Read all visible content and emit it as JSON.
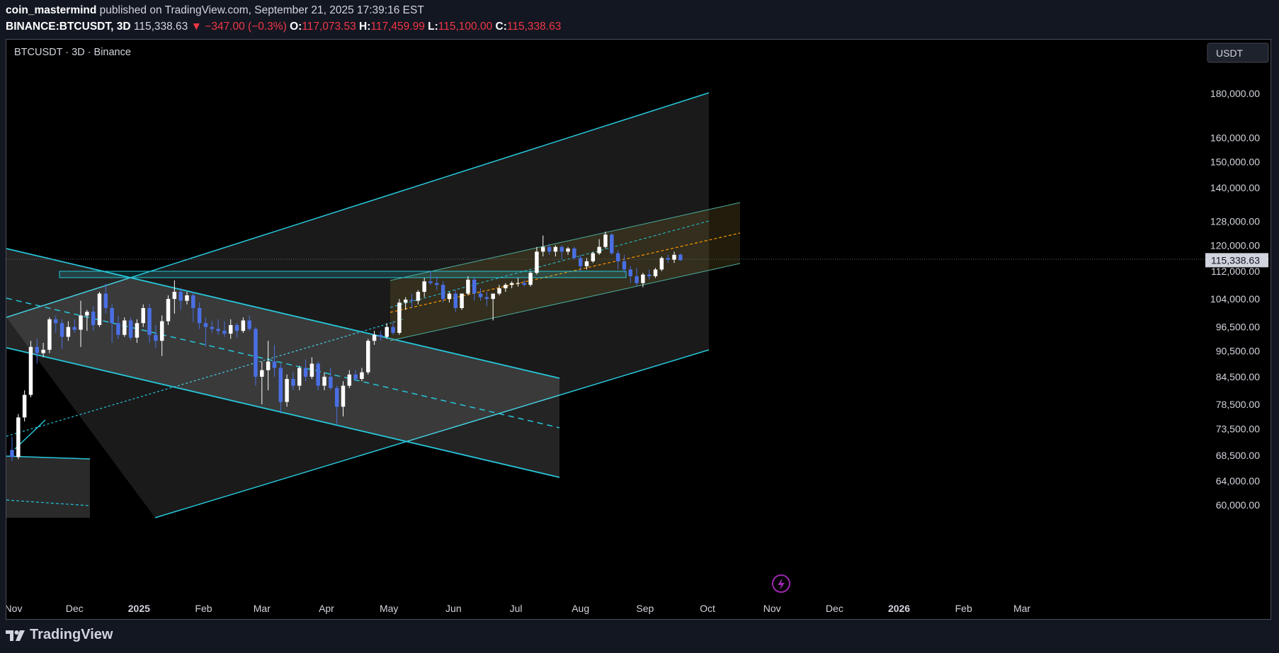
{
  "header": {
    "author": "coin_mastermind",
    "published_text": "published on TradingView.com, September 21, 2025 17:39:16 EST",
    "symbol": "BINANCE:BTCUSDT",
    "interval": "3D",
    "last": "115,338.63",
    "change": "▼ −347.00 (−0.3%)",
    "o_label": "O:",
    "o": "117,073.53",
    "h_label": "H:",
    "h": "117,459.99",
    "l_label": "L:",
    "l": "115,100.00",
    "c_label": "C:",
    "c": "115,338.63"
  },
  "chart": {
    "legend": "BTCUSDT · 3D · Binance",
    "currency_button": "USDT",
    "current_price_label": "115,338.63",
    "flash_icon": "lightning-icon",
    "colors": {
      "bg": "#000000",
      "up": "#ffffff",
      "down": "#4a6fe3",
      "channel": "#26c6da",
      "midline_orange": "#ff9800",
      "channel_fill": "#2a2a2a",
      "box_fill": "#3a3220"
    }
  },
  "footer": {
    "brand": "TradingView"
  },
  "chart_data": {
    "type": "candlestick",
    "title": "BTCUSDT · 3D · Binance",
    "y_axis": {
      "scale": "log",
      "unit": "USDT",
      "ticks": [
        "180,000.00",
        "160,000.00",
        "150,000.00",
        "140,000.00",
        "128,000.00",
        "120,000.00",
        "112,000.00",
        "104,000.00",
        "96,500.00",
        "90,500.00",
        "84,500.00",
        "78,500.00",
        "73,500.00",
        "68,500.00",
        "64,000.00",
        "60,000.00"
      ],
      "tick_values": [
        180000,
        160000,
        150000,
        140000,
        128000,
        120000,
        112000,
        104000,
        96500,
        90500,
        84500,
        78500,
        73500,
        68500,
        64000,
        60000
      ],
      "ylim": [
        58000,
        195000
      ]
    },
    "x_axis": {
      "labels": [
        "Nov",
        "Dec",
        "2025",
        "Feb",
        "Mar",
        "Apr",
        "May",
        "Jun",
        "Jul",
        "Aug",
        "Sep",
        "Oct",
        "Nov",
        "Dec",
        "2026",
        "Feb",
        "Mar"
      ],
      "dates": [
        "2024-11-01",
        "2024-12-01",
        "2025-01-01",
        "2025-02-01",
        "2025-03-01",
        "2025-04-01",
        "2025-05-01",
        "2025-06-01",
        "2025-07-01",
        "2025-08-01",
        "2025-09-01",
        "2025-10-01",
        "2025-11-01",
        "2025-12-01",
        "2026-01-01",
        "2026-02-01",
        "2026-03-01"
      ],
      "bold": [
        "2025",
        "2026"
      ]
    },
    "candles": [
      {
        "date": "2024-11-01",
        "o": 69500,
        "h": 72000,
        "l": 67500,
        "c": 68200
      },
      {
        "date": "2024-11-04",
        "o": 68200,
        "h": 76500,
        "l": 67800,
        "c": 75800
      },
      {
        "date": "2024-11-07",
        "o": 75800,
        "h": 81500,
        "l": 75000,
        "c": 80500
      },
      {
        "date": "2024-11-10",
        "o": 80500,
        "h": 93000,
        "l": 80000,
        "c": 91500
      },
      {
        "date": "2024-11-13",
        "o": 91500,
        "h": 93500,
        "l": 87500,
        "c": 90000
      },
      {
        "date": "2024-11-16",
        "o": 90000,
        "h": 92500,
        "l": 89000,
        "c": 90800
      },
      {
        "date": "2024-11-19",
        "o": 90800,
        "h": 99000,
        "l": 90000,
        "c": 98500
      },
      {
        "date": "2024-11-22",
        "o": 98500,
        "h": 99500,
        "l": 95000,
        "c": 97500
      },
      {
        "date": "2024-11-25",
        "o": 97500,
        "h": 98500,
        "l": 91000,
        "c": 94000
      },
      {
        "date": "2024-11-28",
        "o": 94000,
        "h": 98000,
        "l": 93000,
        "c": 96500
      },
      {
        "date": "2024-12-01",
        "o": 96500,
        "h": 98500,
        "l": 95000,
        "c": 95800
      },
      {
        "date": "2024-12-04",
        "o": 95800,
        "h": 103500,
        "l": 91500,
        "c": 99500
      },
      {
        "date": "2024-12-07",
        "o": 99500,
        "h": 101000,
        "l": 95500,
        "c": 100500
      },
      {
        "date": "2024-12-10",
        "o": 100500,
        "h": 102000,
        "l": 95500,
        "c": 97000
      },
      {
        "date": "2024-12-13",
        "o": 97000,
        "h": 106000,
        "l": 96500,
        "c": 105500
      },
      {
        "date": "2024-12-16",
        "o": 105500,
        "h": 108300,
        "l": 100000,
        "c": 101500
      },
      {
        "date": "2024-12-19",
        "o": 101500,
        "h": 102500,
        "l": 92500,
        "c": 97500
      },
      {
        "date": "2024-12-22",
        "o": 97500,
        "h": 99500,
        "l": 93500,
        "c": 94500
      },
      {
        "date": "2024-12-25",
        "o": 94500,
        "h": 99000,
        "l": 94000,
        "c": 98200
      },
      {
        "date": "2024-12-28",
        "o": 98200,
        "h": 99000,
        "l": 93200,
        "c": 93800
      },
      {
        "date": "2024-12-31",
        "o": 93800,
        "h": 98500,
        "l": 92500,
        "c": 97500
      },
      {
        "date": "2025-01-03",
        "o": 97500,
        "h": 102500,
        "l": 96500,
        "c": 101500
      },
      {
        "date": "2025-01-06",
        "o": 101500,
        "h": 102700,
        "l": 92500,
        "c": 94500
      },
      {
        "date": "2025-01-09",
        "o": 94500,
        "h": 97000,
        "l": 91200,
        "c": 93000
      },
      {
        "date": "2025-01-12",
        "o": 93000,
        "h": 99500,
        "l": 89300,
        "c": 98000
      },
      {
        "date": "2025-01-15",
        "o": 98000,
        "h": 105000,
        "l": 97000,
        "c": 104000
      },
      {
        "date": "2025-01-18",
        "o": 104000,
        "h": 109300,
        "l": 100000,
        "c": 106000
      },
      {
        "date": "2025-01-21",
        "o": 106000,
        "h": 107000,
        "l": 101000,
        "c": 103500
      },
      {
        "date": "2025-01-24",
        "o": 103500,
        "h": 106000,
        "l": 102500,
        "c": 105000
      },
      {
        "date": "2025-01-27",
        "o": 105000,
        "h": 106000,
        "l": 97800,
        "c": 101500
      },
      {
        "date": "2025-01-30",
        "o": 101500,
        "h": 103000,
        "l": 96000,
        "c": 97500
      },
      {
        "date": "2025-02-02",
        "o": 97500,
        "h": 99000,
        "l": 91500,
        "c": 96500
      },
      {
        "date": "2025-02-05",
        "o": 96500,
        "h": 98000,
        "l": 95000,
        "c": 96000
      },
      {
        "date": "2025-02-08",
        "o": 96000,
        "h": 98500,
        "l": 94500,
        "c": 95500
      },
      {
        "date": "2025-02-11",
        "o": 95500,
        "h": 98000,
        "l": 94000,
        "c": 94800
      },
      {
        "date": "2025-02-14",
        "o": 94800,
        "h": 98500,
        "l": 93500,
        "c": 97000
      },
      {
        "date": "2025-02-17",
        "o": 97000,
        "h": 97500,
        "l": 93800,
        "c": 95500
      },
      {
        "date": "2025-02-20",
        "o": 95500,
        "h": 99000,
        "l": 95000,
        "c": 98200
      },
      {
        "date": "2025-02-23",
        "o": 98200,
        "h": 99500,
        "l": 95500,
        "c": 96000
      },
      {
        "date": "2025-02-26",
        "o": 96000,
        "h": 96500,
        "l": 82500,
        "c": 84500
      },
      {
        "date": "2025-03-01",
        "o": 84500,
        "h": 88000,
        "l": 78500,
        "c": 86000
      },
      {
        "date": "2025-03-04",
        "o": 86000,
        "h": 93000,
        "l": 81500,
        "c": 88000
      },
      {
        "date": "2025-03-07",
        "o": 88000,
        "h": 92000,
        "l": 84500,
        "c": 86500
      },
      {
        "date": "2025-03-10",
        "o": 86500,
        "h": 87500,
        "l": 76600,
        "c": 79000
      },
      {
        "date": "2025-03-13",
        "o": 79000,
        "h": 85000,
        "l": 78000,
        "c": 84000
      },
      {
        "date": "2025-03-16",
        "o": 84000,
        "h": 85500,
        "l": 81500,
        "c": 82500
      },
      {
        "date": "2025-03-19",
        "o": 82500,
        "h": 87000,
        "l": 81500,
        "c": 86500
      },
      {
        "date": "2025-03-22",
        "o": 86500,
        "h": 88500,
        "l": 83500,
        "c": 84500
      },
      {
        "date": "2025-03-25",
        "o": 84500,
        "h": 89000,
        "l": 84000,
        "c": 87500
      },
      {
        "date": "2025-03-28",
        "o": 87500,
        "h": 88000,
        "l": 81500,
        "c": 82500
      },
      {
        "date": "2025-03-31",
        "o": 82500,
        "h": 85500,
        "l": 81500,
        "c": 84500
      },
      {
        "date": "2025-04-03",
        "o": 84500,
        "h": 86500,
        "l": 81500,
        "c": 82000
      },
      {
        "date": "2025-04-06",
        "o": 82000,
        "h": 82500,
        "l": 74500,
        "c": 78000
      },
      {
        "date": "2025-04-09",
        "o": 78000,
        "h": 83500,
        "l": 76000,
        "c": 82500
      },
      {
        "date": "2025-04-12",
        "o": 82500,
        "h": 86000,
        "l": 82000,
        "c": 85000
      },
      {
        "date": "2025-04-15",
        "o": 85000,
        "h": 86000,
        "l": 83500,
        "c": 84000
      },
      {
        "date": "2025-04-18",
        "o": 84000,
        "h": 86500,
        "l": 83500,
        "c": 85500
      },
      {
        "date": "2025-04-21",
        "o": 85500,
        "h": 93500,
        "l": 85000,
        "c": 93000
      },
      {
        "date": "2025-04-24",
        "o": 93000,
        "h": 95500,
        "l": 92000,
        "c": 94500
      },
      {
        "date": "2025-04-27",
        "o": 94500,
        "h": 95500,
        "l": 93000,
        "c": 94000
      },
      {
        "date": "2025-04-30",
        "o": 94000,
        "h": 97500,
        "l": 93500,
        "c": 96500
      },
      {
        "date": "2025-05-03",
        "o": 96500,
        "h": 98000,
        "l": 94500,
        "c": 95000
      },
      {
        "date": "2025-05-06",
        "o": 95000,
        "h": 104000,
        "l": 94500,
        "c": 103000
      },
      {
        "date": "2025-05-09",
        "o": 103000,
        "h": 104500,
        "l": 101000,
        "c": 103800
      },
      {
        "date": "2025-05-12",
        "o": 103800,
        "h": 105500,
        "l": 101500,
        "c": 103500
      },
      {
        "date": "2025-05-15",
        "o": 103500,
        "h": 106500,
        "l": 102500,
        "c": 106000
      },
      {
        "date": "2025-05-18",
        "o": 106000,
        "h": 110000,
        "l": 104500,
        "c": 109000
      },
      {
        "date": "2025-05-21",
        "o": 109000,
        "h": 111900,
        "l": 108000,
        "c": 108500
      },
      {
        "date": "2025-05-24",
        "o": 108500,
        "h": 110500,
        "l": 106500,
        "c": 108000
      },
      {
        "date": "2025-05-27",
        "o": 108000,
        "h": 109000,
        "l": 103000,
        "c": 104000
      },
      {
        "date": "2025-05-30",
        "o": 104000,
        "h": 106000,
        "l": 103000,
        "c": 105500
      },
      {
        "date": "2025-06-02",
        "o": 105500,
        "h": 106500,
        "l": 100500,
        "c": 101500
      },
      {
        "date": "2025-06-05",
        "o": 101500,
        "h": 105500,
        "l": 101000,
        "c": 105500
      },
      {
        "date": "2025-06-08",
        "o": 105500,
        "h": 110500,
        "l": 105000,
        "c": 109500
      },
      {
        "date": "2025-06-11",
        "o": 109500,
        "h": 110000,
        "l": 103500,
        "c": 105500
      },
      {
        "date": "2025-06-14",
        "o": 105500,
        "h": 107000,
        "l": 103500,
        "c": 104500
      },
      {
        "date": "2025-06-17",
        "o": 104500,
        "h": 106000,
        "l": 102000,
        "c": 104000
      },
      {
        "date": "2025-06-20",
        "o": 104000,
        "h": 105000,
        "l": 98200,
        "c": 105500
      },
      {
        "date": "2025-06-23",
        "o": 105500,
        "h": 108000,
        "l": 105000,
        "c": 107000
      },
      {
        "date": "2025-06-26",
        "o": 107000,
        "h": 108500,
        "l": 106000,
        "c": 108000
      },
      {
        "date": "2025-06-29",
        "o": 108000,
        "h": 109000,
        "l": 107000,
        "c": 108500
      },
      {
        "date": "2025-07-02",
        "o": 108500,
        "h": 110000,
        "l": 107500,
        "c": 108500
      },
      {
        "date": "2025-07-05",
        "o": 108500,
        "h": 109500,
        "l": 107500,
        "c": 108000
      },
      {
        "date": "2025-07-08",
        "o": 108000,
        "h": 112000,
        "l": 107500,
        "c": 111500
      },
      {
        "date": "2025-07-11",
        "o": 111500,
        "h": 119500,
        "l": 111000,
        "c": 118000
      },
      {
        "date": "2025-07-14",
        "o": 118000,
        "h": 123200,
        "l": 116500,
        "c": 119500
      },
      {
        "date": "2025-07-17",
        "o": 119500,
        "h": 120500,
        "l": 117000,
        "c": 118000
      },
      {
        "date": "2025-07-20",
        "o": 118000,
        "h": 120000,
        "l": 116500,
        "c": 119500
      },
      {
        "date": "2025-07-23",
        "o": 119500,
        "h": 120000,
        "l": 115500,
        "c": 118000
      },
      {
        "date": "2025-07-26",
        "o": 118000,
        "h": 119500,
        "l": 117000,
        "c": 119000
      },
      {
        "date": "2025-07-29",
        "o": 119000,
        "h": 119500,
        "l": 115500,
        "c": 116000
      },
      {
        "date": "2025-08-01",
        "o": 116000,
        "h": 117000,
        "l": 112000,
        "c": 113500
      },
      {
        "date": "2025-08-04",
        "o": 113500,
        "h": 116000,
        "l": 112500,
        "c": 115000
      },
      {
        "date": "2025-08-07",
        "o": 115000,
        "h": 118000,
        "l": 114500,
        "c": 117500
      },
      {
        "date": "2025-08-10",
        "o": 117500,
        "h": 122000,
        "l": 117000,
        "c": 119500
      },
      {
        "date": "2025-08-13",
        "o": 119500,
        "h": 124500,
        "l": 119000,
        "c": 123500
      },
      {
        "date": "2025-08-16",
        "o": 123500,
        "h": 124000,
        "l": 117000,
        "c": 117500
      },
      {
        "date": "2025-08-19",
        "o": 117500,
        "h": 118500,
        "l": 112500,
        "c": 115000
      },
      {
        "date": "2025-08-22",
        "o": 115000,
        "h": 117000,
        "l": 111500,
        "c": 112500
      },
      {
        "date": "2025-08-25",
        "o": 112500,
        "h": 113500,
        "l": 108500,
        "c": 110500
      },
      {
        "date": "2025-08-28",
        "o": 110500,
        "h": 113000,
        "l": 107500,
        "c": 108500
      },
      {
        "date": "2025-08-31",
        "o": 108500,
        "h": 111500,
        "l": 107300,
        "c": 111000
      },
      {
        "date": "2025-09-03",
        "o": 111000,
        "h": 112500,
        "l": 109500,
        "c": 110500
      },
      {
        "date": "2025-09-06",
        "o": 110500,
        "h": 113000,
        "l": 110000,
        "c": 112500
      },
      {
        "date": "2025-09-09",
        "o": 112500,
        "h": 116500,
        "l": 112000,
        "c": 116000
      },
      {
        "date": "2025-09-12",
        "o": 116000,
        "h": 117000,
        "l": 114500,
        "c": 115500
      },
      {
        "date": "2025-09-15",
        "o": 115500,
        "h": 118000,
        "l": 114500,
        "c": 117000
      },
      {
        "date": "2025-09-18",
        "o": 117073.53,
        "h": 117459.99,
        "l": 115100,
        "c": 115338.63
      }
    ],
    "grid": false,
    "last_price": 115338.63
  }
}
